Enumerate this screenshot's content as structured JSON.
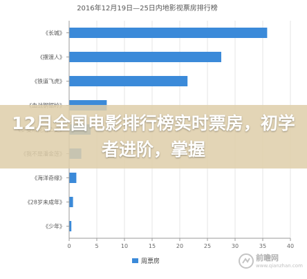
{
  "chart_data": {
    "type": "bar",
    "orientation": "horizontal",
    "title": "2016年12月19日—25日内地影视票房排行榜",
    "categories": [
      "《长城》",
      "《摆渡人》",
      "《铁道飞虎》",
      "《血战钢锯岭》",
      "《罗曼蒂克消亡史》",
      "《我不是潘金莲》",
      "《海洋奇缘》",
      "《28岁未成年》",
      "《少年》"
    ],
    "series": [
      {
        "name": "周票房",
        "values": [
          35.8,
          27.5,
          21.4,
          6.8,
          3.9,
          2.2,
          1.3,
          0.7,
          0.4
        ]
      }
    ],
    "xlim": [
      0,
      40
    ],
    "xticks": [
      0,
      5,
      10,
      15,
      20,
      25,
      30,
      35,
      40
    ],
    "xlabel": "",
    "ylabel": "",
    "grid": true,
    "legend": "bottom-center",
    "bar_color": "#3b8ad9"
  },
  "overlay": {
    "banner_text": "12月全国电影排行榜实时票房，初学者进阶，掌握"
  },
  "watermark": {
    "main": "前瞻网",
    "sub": "www.qianzhan.com"
  }
}
